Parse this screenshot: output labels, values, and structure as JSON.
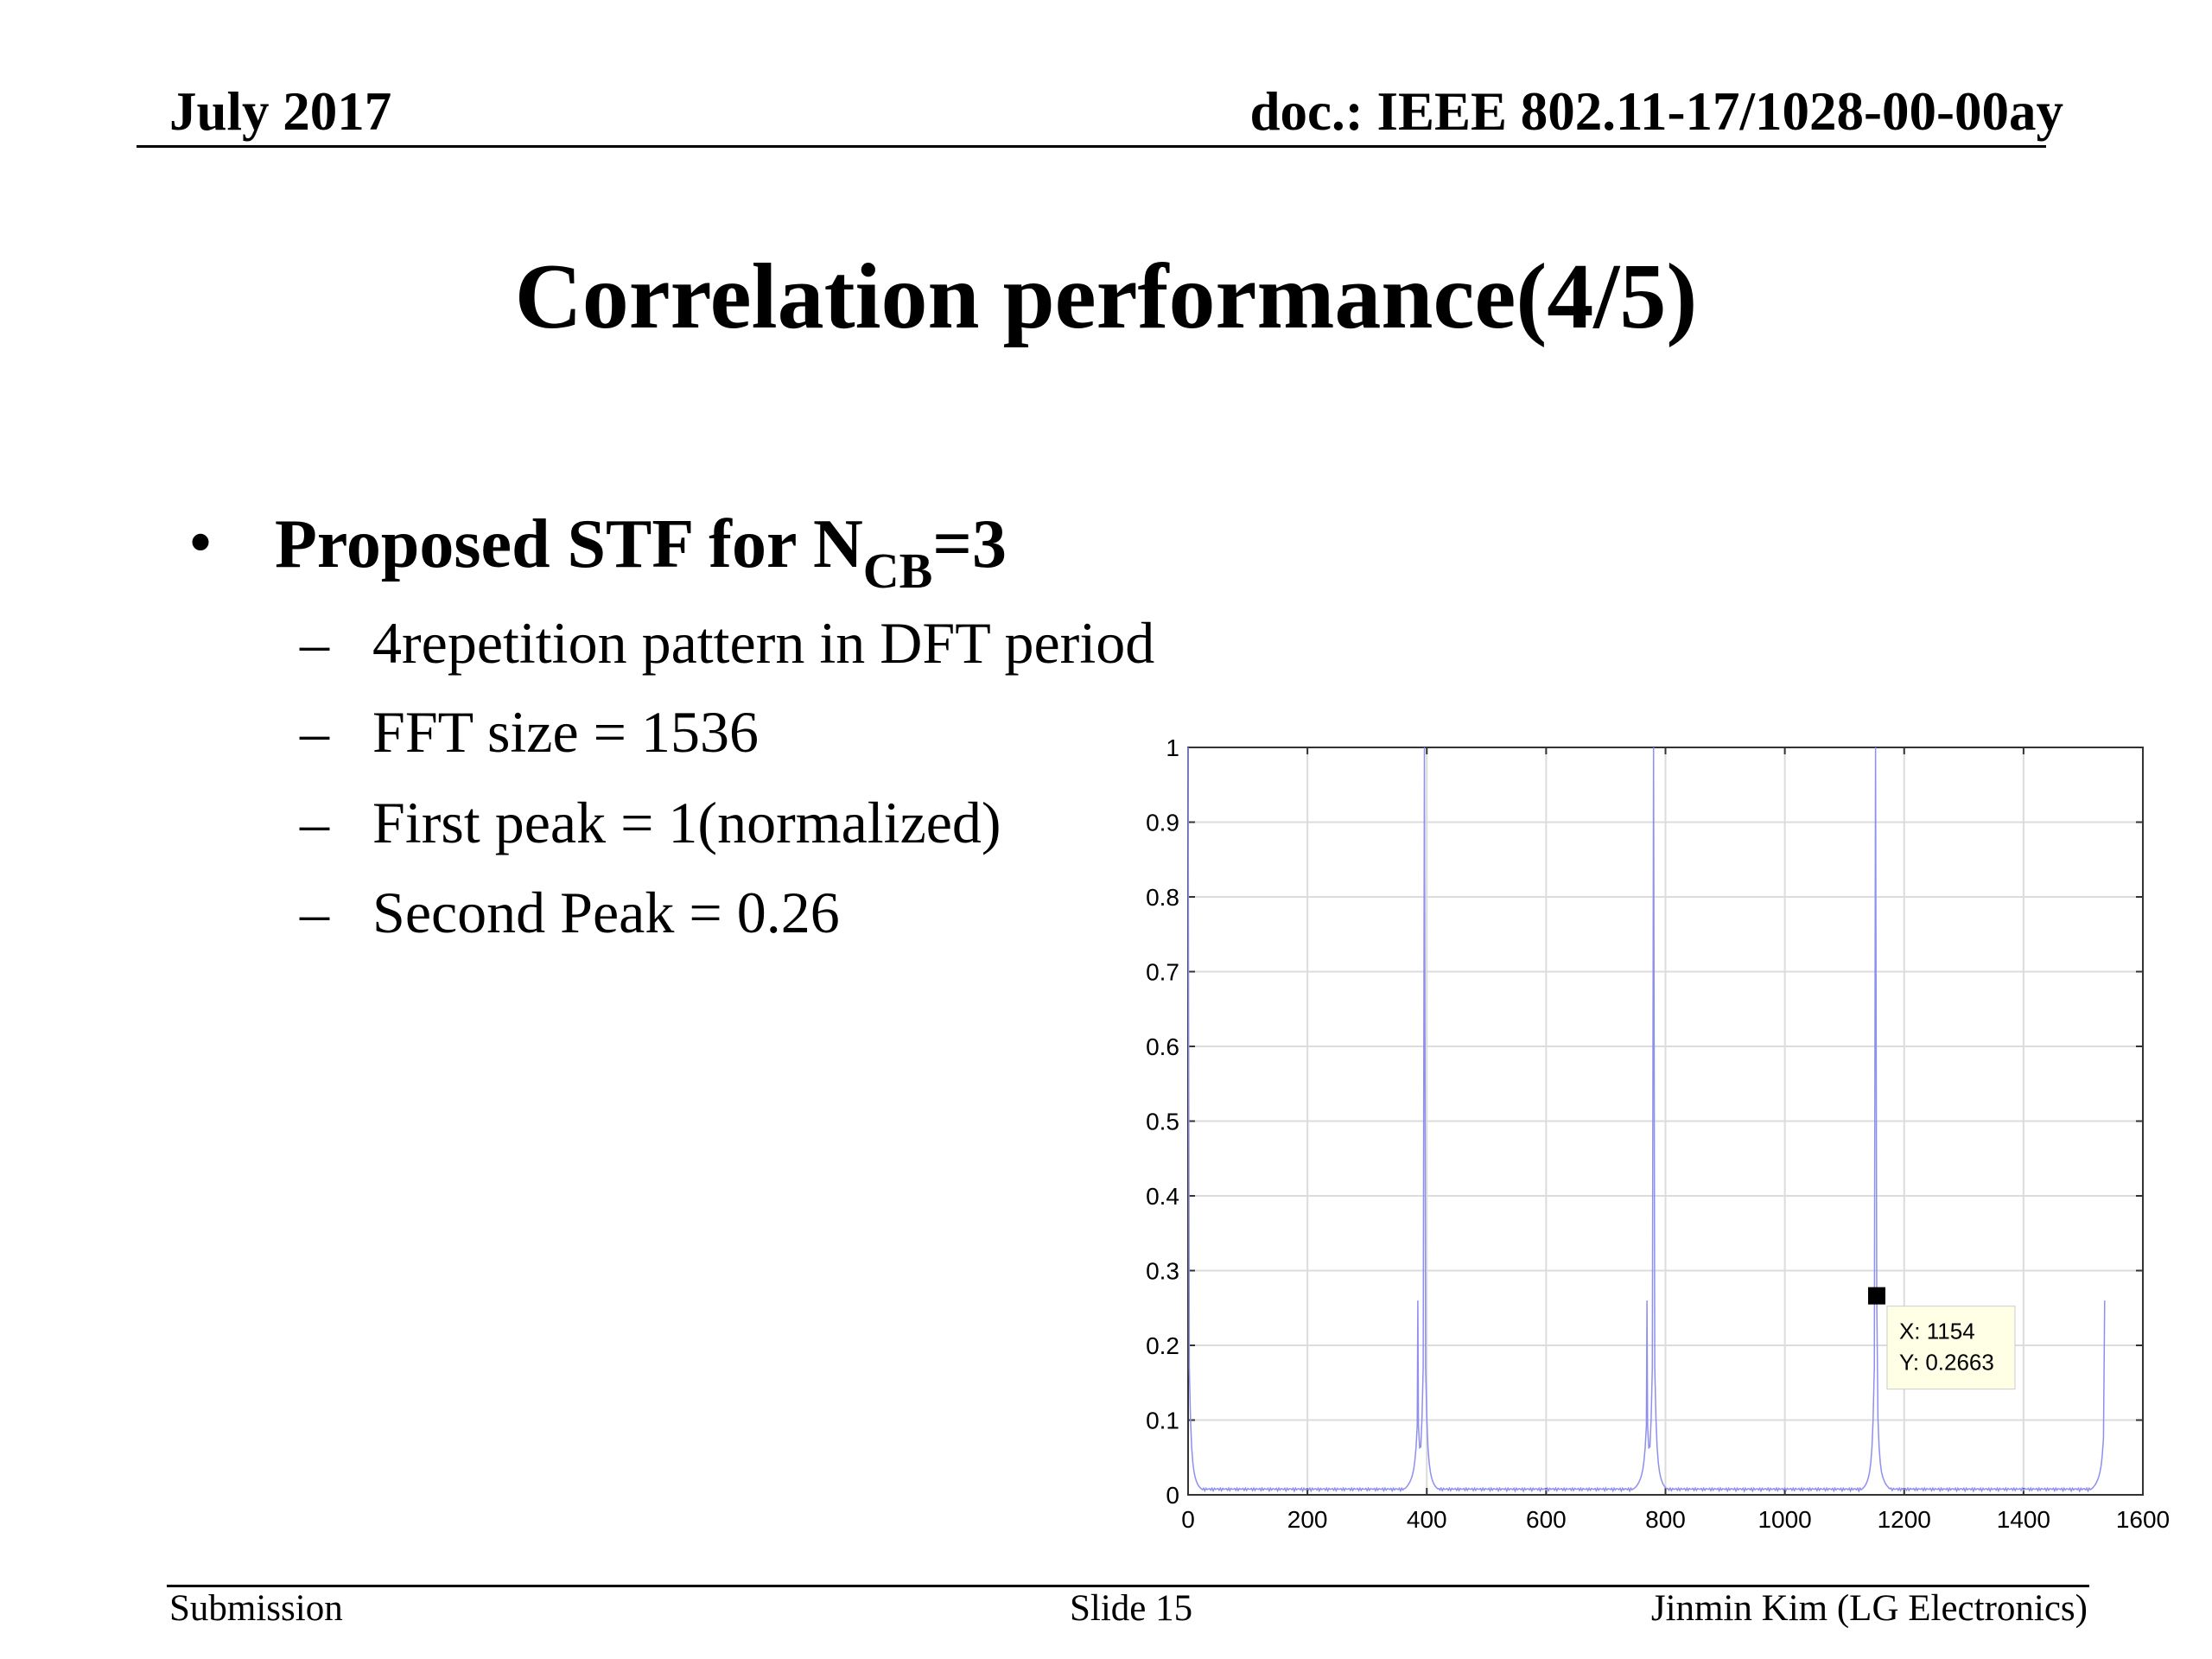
{
  "header": {
    "date": "July 2017",
    "doc": "doc.: IEEE 802.11-17/1028-00-00ay"
  },
  "slide": {
    "title": "Correlation performance(4/5)",
    "bullet": {
      "marker": "•",
      "text_main": "Proposed STF for N",
      "text_sub": "CB",
      "text_tail": "=3"
    },
    "sub_bullets": [
      {
        "dash": "–",
        "text": "4repetition pattern in DFT period"
      },
      {
        "dash": "–",
        "text": "FFT size = 1536"
      },
      {
        "dash": "–",
        "text": "First peak = 1(normalized)"
      },
      {
        "dash": "–",
        "text": "Second Peak = 0.26"
      }
    ]
  },
  "footer": {
    "left": "Submission",
    "center": "Slide 15",
    "right": "Jinmin Kim (LG Electronics)"
  },
  "chart_data": {
    "type": "line",
    "title": "",
    "xlabel": "",
    "ylabel": "",
    "xlim": [
      0,
      1600
    ],
    "ylim": [
      0,
      1
    ],
    "xticks": [
      0,
      200,
      400,
      600,
      800,
      1000,
      1200,
      1400,
      1600
    ],
    "yticks": [
      0,
      0.1,
      0.2,
      0.3,
      0.4,
      0.5,
      0.6,
      0.7,
      0.8,
      0.9,
      1
    ],
    "grid": true,
    "line_color": "#8f8fef",
    "series": [
      {
        "peaks": [
          {
            "x": 0,
            "y": 1.0
          },
          {
            "x": 385,
            "y": 0.26
          },
          {
            "x": 396,
            "y": 1.0
          },
          {
            "x": 769,
            "y": 0.26
          },
          {
            "x": 780,
            "y": 1.0
          },
          {
            "x": 1154,
            "y": 0.2663
          },
          {
            "x": 1152,
            "y": 1.0
          },
          {
            "x": 1536,
            "y": 0.26
          }
        ],
        "baseline": 0.005
      }
    ],
    "datatip": {
      "x": 1154,
      "y": 0.2663,
      "label_x": "X: 1154",
      "label_y": "Y: 0.2663"
    }
  }
}
